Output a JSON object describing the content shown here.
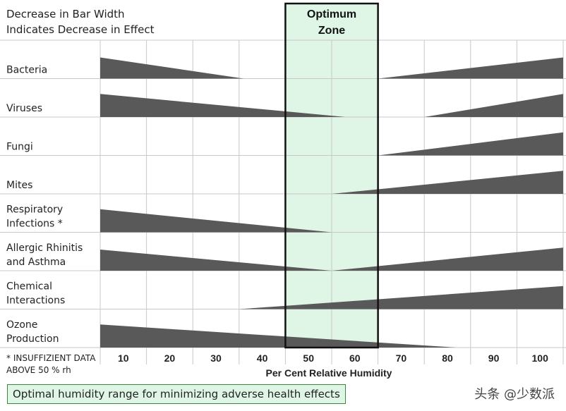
{
  "header_note": {
    "line1": "Decrease in Bar Width",
    "line2": "Indicates Decrease in Effect"
  },
  "footnote": {
    "line1": "* INSUFFIZIENT DATA",
    "line2": "ABOVE  50 % rh"
  },
  "caption": "Optimal humidity range for minimizing adverse health effects",
  "watermark": "头条 @少数派",
  "colors": {
    "bar": "#595959",
    "optimum_fill": "#dff5e6",
    "optimum_border": "#111111",
    "grid": "#c8c8c8"
  },
  "chart_data": {
    "type": "area",
    "xlabel": "Per Cent Relative Humidity",
    "x_ticks": [
      10,
      20,
      30,
      40,
      50,
      60,
      70,
      80,
      90,
      100
    ],
    "xlim": [
      0,
      100
    ],
    "optimum_zone": {
      "label_line1": "Optimum",
      "label_line2": "Zone",
      "range": [
        40,
        60
      ]
    },
    "rows": [
      {
        "label_lines": [
          "Bacteria"
        ],
        "left": {
          "from": 0,
          "to": 31,
          "width": 0.55
        },
        "right": {
          "from": 60,
          "to": 100,
          "width": 0.55
        }
      },
      {
        "label_lines": [
          "Viruses"
        ],
        "left": {
          "from": 0,
          "to": 53,
          "width": 0.6
        },
        "right": {
          "from": 70,
          "to": 100,
          "width": 0.6
        }
      },
      {
        "label_lines": [
          "Fungi"
        ],
        "left": null,
        "right": {
          "from": 60,
          "to": 100,
          "width": 0.6
        }
      },
      {
        "label_lines": [
          "Mites"
        ],
        "left": null,
        "right": {
          "from": 50,
          "to": 100,
          "width": 0.6
        }
      },
      {
        "label_lines": [
          "Respiratory",
          "Infections *"
        ],
        "left": {
          "from": 0,
          "to": 50,
          "width": 0.6
        },
        "right": null
      },
      {
        "label_lines": [
          "Allergic Rhinitis",
          "and Asthma"
        ],
        "left": {
          "from": 0,
          "to": 50,
          "width": 0.55
        },
        "right": {
          "from": 50,
          "to": 100,
          "width": 0.6
        }
      },
      {
        "label_lines": [
          "Chemical",
          "Interactions"
        ],
        "left": null,
        "right": {
          "from": 30,
          "to": 100,
          "width": 0.6
        }
      },
      {
        "label_lines": [
          "Ozone",
          "Production"
        ],
        "left": {
          "from": 0,
          "to": 77,
          "width": 0.6
        },
        "right": null
      }
    ]
  }
}
